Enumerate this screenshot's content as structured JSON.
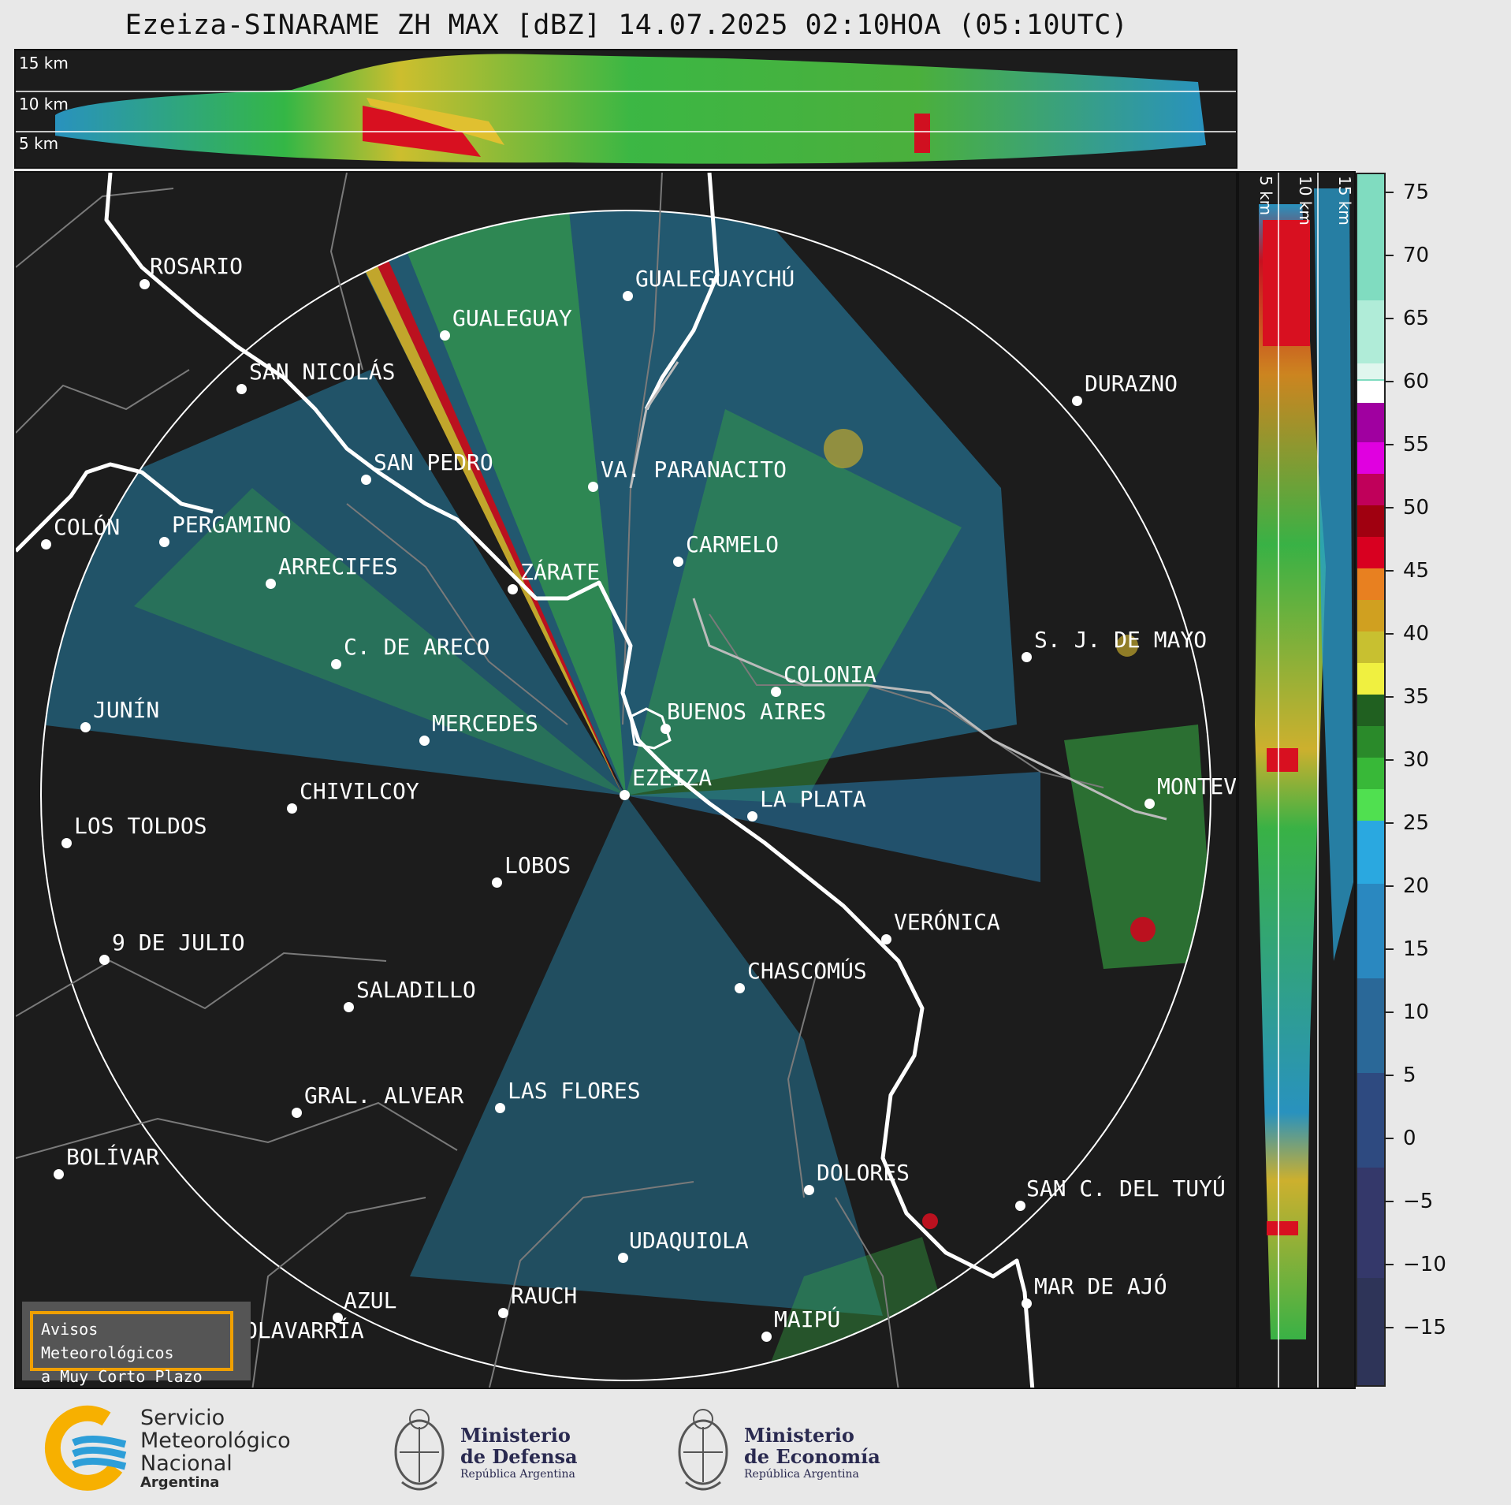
{
  "title": "Ezeiza-SINARAME ZH MAX [dBZ] 14.07.2025 02:10HOA (05:10UTC)",
  "top_panel": {
    "altitude_labels": [
      "15 km",
      "10 km",
      "5 km"
    ]
  },
  "side_panel": {
    "altitude_labels": [
      "5 km",
      "10 km",
      "15 km"
    ]
  },
  "colorbar": {
    "ticks": [
      "75",
      "70",
      "65",
      "60",
      "55",
      "50",
      "45",
      "40",
      "35",
      "30",
      "25",
      "20",
      "15",
      "10",
      "5",
      "0",
      "−5",
      "−10",
      "−15"
    ]
  },
  "cities": [
    {
      "name": "ROSARIO"
    },
    {
      "name": "GUALEGUAYCHÚ"
    },
    {
      "name": "GUALEGUAY"
    },
    {
      "name": "SAN NICOLÁS"
    },
    {
      "name": "DURAZNO"
    },
    {
      "name": "SAN PEDRO"
    },
    {
      "name": "VA. PARANACITO"
    },
    {
      "name": "COLÓN"
    },
    {
      "name": "PERGAMINO"
    },
    {
      "name": "CARMELO"
    },
    {
      "name": "ARRECIFES"
    },
    {
      "name": "ZÁRATE"
    },
    {
      "name": "S. J. DE MAYO"
    },
    {
      "name": "C. DE ARECO"
    },
    {
      "name": "COLONIA"
    },
    {
      "name": "JUNÍN"
    },
    {
      "name": "BUENOS AIRES"
    },
    {
      "name": "MERCEDES"
    },
    {
      "name": "EZEIZA"
    },
    {
      "name": "MONTEVIDEO"
    },
    {
      "name": "CHIVILCOY"
    },
    {
      "name": "LA PLATA"
    },
    {
      "name": "LOS TOLDOS"
    },
    {
      "name": "LOBOS"
    },
    {
      "name": "VERÓNICA"
    },
    {
      "name": "9 DE JULIO"
    },
    {
      "name": "CHASCOMÚS"
    },
    {
      "name": "SALADILLO"
    },
    {
      "name": "GRAL. ALVEAR"
    },
    {
      "name": "LAS FLORES"
    },
    {
      "name": "DOLORES"
    },
    {
      "name": "BOLÍVAR"
    },
    {
      "name": "SAN C. DEL TUYÚ"
    },
    {
      "name": "UDAQUIOLA"
    },
    {
      "name": "MAR DE AJÓ"
    },
    {
      "name": "AZUL"
    },
    {
      "name": "RAUCH"
    },
    {
      "name": "OLAVARRÍA"
    },
    {
      "name": "MAIPÚ"
    }
  ],
  "avisos": {
    "line1": "Avisos Meteorológicos",
    "line2": "a Muy Corto Plazo"
  },
  "footer": {
    "smn_line1": "Servicio",
    "smn_line2": "Meteorológico",
    "smn_line3": "Nacional",
    "smn_line4": "Argentina",
    "defensa_line1": "Ministerio",
    "defensa_line2": "de Defensa",
    "defensa_line3": "República Argentina",
    "economia_line1": "Ministerio",
    "economia_line2": "de Economía",
    "economia_line3": "República Argentina"
  },
  "colors": {
    "panel_bg": "#1c1c1c",
    "accent_orange": "#f0a000",
    "smn_blue": "#2d9ed8",
    "smn_yellow": "#f7b000"
  }
}
